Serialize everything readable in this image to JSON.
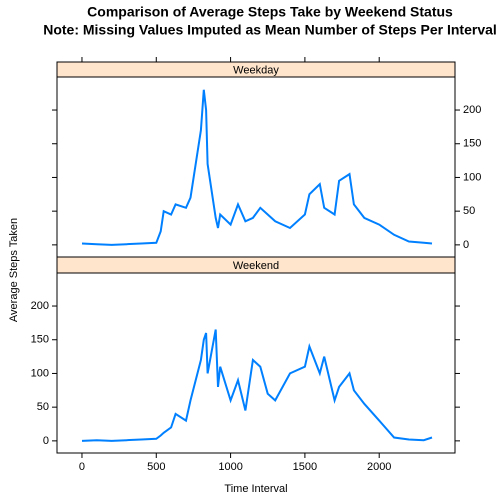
{
  "chart_data": {
    "type": "line",
    "title": "Comparison of Average Steps Take by Weekend Status",
    "subtitle": "Note: Missing Values Imputed as Mean Number of Steps Per Interval",
    "xlabel": "Time Interval",
    "ylabel": "Average Steps Taken",
    "x": [
      0,
      100,
      200,
      300,
      400,
      500,
      530,
      550,
      600,
      630,
      700,
      730,
      800,
      820,
      835,
      845,
      900,
      915,
      930,
      1000,
      1050,
      1100,
      1150,
      1200,
      1250,
      1300,
      1400,
      1500,
      1530,
      1600,
      1630,
      1700,
      1730,
      1800,
      1830,
      1900,
      2000,
      2100,
      2200,
      2300,
      2355
    ],
    "series": [
      {
        "name": "Weekday",
        "color": "#0080ff",
        "values": [
          2,
          1,
          0,
          1,
          2,
          3,
          20,
          50,
          45,
          60,
          55,
          70,
          170,
          230,
          200,
          120,
          40,
          25,
          45,
          30,
          60,
          35,
          40,
          55,
          45,
          35,
          25,
          45,
          75,
          90,
          55,
          45,
          95,
          105,
          60,
          40,
          30,
          15,
          5,
          3,
          2
        ]
      },
      {
        "name": "Weekend",
        "color": "#0080ff",
        "values": [
          0,
          1,
          0,
          1,
          2,
          3,
          8,
          12,
          20,
          40,
          30,
          60,
          120,
          150,
          160,
          100,
          165,
          80,
          110,
          60,
          90,
          45,
          120,
          110,
          70,
          60,
          100,
          110,
          140,
          100,
          125,
          60,
          80,
          100,
          75,
          55,
          30,
          5,
          2,
          1,
          5
        ]
      }
    ],
    "strip_color": "#ffe5cc",
    "xlim": [
      -168,
      2510
    ],
    "xticks": [
      0,
      500,
      1000,
      1500,
      2000
    ],
    "ylim": [
      -18,
      249
    ],
    "yticks": [
      0,
      50,
      100,
      150,
      200
    ]
  }
}
